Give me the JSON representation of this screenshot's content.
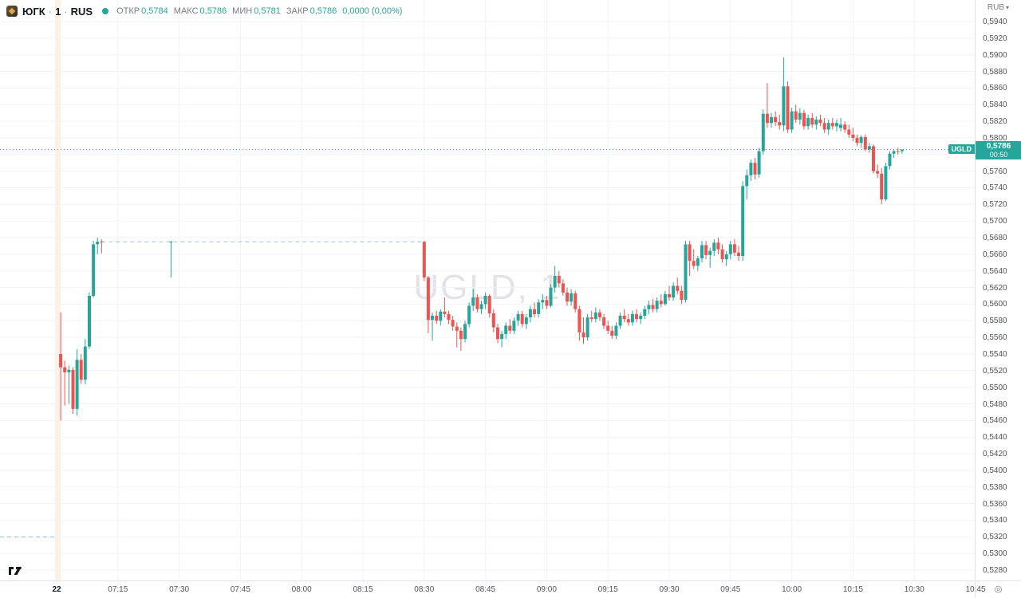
{
  "header": {
    "symbol": "ЮГК",
    "interval": "1",
    "exchange": "RUS",
    "separator": "·",
    "ohlc": {
      "open_label": "ОТКР",
      "open": "0,5784",
      "high_label": "МАКС",
      "high": "0,5786",
      "low_label": "МИН",
      "low": "0,5781",
      "close_label": "ЗАКР",
      "close": "0,5786",
      "change": "0,0000 (0,00%)"
    }
  },
  "watermark": "UGLD, 1",
  "price_axis": {
    "currency": "RUB",
    "caret": "▾",
    "badge": {
      "symbol": "UGLD",
      "price": "0,5786",
      "countdown": "00:50"
    }
  },
  "time_axis": {
    "ticks": [
      {
        "label": "22",
        "min": 0,
        "date": true
      },
      {
        "label": "07:15",
        "min": 15
      },
      {
        "label": "07:30",
        "min": 30
      },
      {
        "label": "07:45",
        "min": 45
      },
      {
        "label": "08:00",
        "min": 60
      },
      {
        "label": "08:15",
        "min": 75
      },
      {
        "label": "08:30",
        "min": 90
      },
      {
        "label": "08:45",
        "min": 105
      },
      {
        "label": "09:00",
        "min": 120
      },
      {
        "label": "09:15",
        "min": 135
      },
      {
        "label": "09:30",
        "min": 150
      },
      {
        "label": "09:45",
        "min": 165
      },
      {
        "label": "10:00",
        "min": 180
      },
      {
        "label": "10:15",
        "min": 195
      },
      {
        "label": "10:30",
        "min": 210
      },
      {
        "label": "10:45",
        "min": 225
      }
    ],
    "timezone_icon": "◎"
  },
  "colors": {
    "up": "#26a69a",
    "down": "#ef5350",
    "grid": "#f0f3fa",
    "session_band": "rgba(249,166,90,0.16)",
    "dashed_line": "#26a69a",
    "last_price_line": "#26a69a",
    "axis_text": "#50535e"
  },
  "chart_data": {
    "type": "candlestick",
    "symbol": "UGLD",
    "interval": "1m",
    "currency": "RUB",
    "ylim": [
      0.528,
      0.594
    ],
    "price_step": 0.002,
    "grid": true,
    "session_start_band_min": 0,
    "levels": {
      "prev_close": 0.532,
      "halt_level": 0.5675,
      "halt_from": "07:11",
      "halt_to": "08:30",
      "last_price": 0.5786
    },
    "candles": [
      [
        "07:01",
        0.554,
        0.559,
        0.546,
        0.5524
      ],
      [
        "07:02",
        0.5524,
        0.5532,
        0.5478,
        0.5518
      ],
      [
        "07:03",
        0.5518,
        0.5526,
        0.548,
        0.5521
      ],
      [
        "07:04",
        0.5521,
        0.5524,
        0.5468,
        0.5474
      ],
      [
        "07:05",
        0.5474,
        0.5546,
        0.5466,
        0.5533
      ],
      [
        "07:06",
        0.5533,
        0.554,
        0.5504,
        0.5509
      ],
      [
        "07:07",
        0.5509,
        0.5558,
        0.5504,
        0.5549
      ],
      [
        "07:08",
        0.5549,
        0.5614,
        0.5546,
        0.561
      ],
      [
        "07:09",
        0.561,
        0.5676,
        0.5608,
        0.5672
      ],
      [
        "07:10",
        0.5672,
        0.568,
        0.566,
        0.5675
      ],
      [
        "07:11",
        0.5675,
        0.5678,
        0.5661,
        0.5674
      ],
      [
        "07:28",
        0.5674,
        0.5676,
        0.5632,
        0.5675
      ],
      [
        "08:30",
        0.5675,
        0.5676,
        0.5628,
        0.5632
      ],
      [
        "08:31",
        0.5632,
        0.5634,
        0.5565,
        0.5581
      ],
      [
        "08:32",
        0.5581,
        0.559,
        0.5556,
        0.5586
      ],
      [
        "08:33",
        0.5586,
        0.5592,
        0.5576,
        0.558
      ],
      [
        "08:34",
        0.558,
        0.5594,
        0.5574,
        0.5591
      ],
      [
        "08:35",
        0.5591,
        0.5608,
        0.5584,
        0.5588
      ],
      [
        "08:36",
        0.5588,
        0.5592,
        0.5576,
        0.5581
      ],
      [
        "08:37",
        0.5581,
        0.5586,
        0.5568,
        0.5573
      ],
      [
        "08:38",
        0.5573,
        0.5578,
        0.5548,
        0.5568
      ],
      [
        "08:39",
        0.5568,
        0.5572,
        0.5544,
        0.5558
      ],
      [
        "08:40",
        0.5558,
        0.558,
        0.5554,
        0.5576
      ],
      [
        "08:41",
        0.5576,
        0.5602,
        0.5572,
        0.5598
      ],
      [
        "08:42",
        0.5598,
        0.5618,
        0.5592,
        0.5608
      ],
      [
        "08:43",
        0.5608,
        0.5612,
        0.559,
        0.5594
      ],
      [
        "08:44",
        0.5594,
        0.5604,
        0.5588,
        0.56
      ],
      [
        "08:45",
        0.56,
        0.5614,
        0.5594,
        0.561
      ],
      [
        "08:46",
        0.561,
        0.5612,
        0.5584,
        0.5589
      ],
      [
        "08:47",
        0.5589,
        0.5594,
        0.5566,
        0.5572
      ],
      [
        "08:48",
        0.5572,
        0.5576,
        0.5553,
        0.5558
      ],
      [
        "08:49",
        0.5558,
        0.5568,
        0.5548,
        0.5564
      ],
      [
        "08:50",
        0.5564,
        0.5578,
        0.5558,
        0.5574
      ],
      [
        "08:51",
        0.5574,
        0.5582,
        0.5564,
        0.5568
      ],
      [
        "08:52",
        0.5568,
        0.5584,
        0.5564,
        0.558
      ],
      [
        "08:53",
        0.558,
        0.5592,
        0.5574,
        0.5588
      ],
      [
        "08:54",
        0.5588,
        0.5592,
        0.5572,
        0.5576
      ],
      [
        "08:55",
        0.5576,
        0.5588,
        0.557,
        0.5584
      ],
      [
        "08:56",
        0.5584,
        0.5598,
        0.5578,
        0.5594
      ],
      [
        "08:57",
        0.5594,
        0.5602,
        0.5584,
        0.5588
      ],
      [
        "08:58",
        0.5588,
        0.5606,
        0.5584,
        0.5602
      ],
      [
        "08:59",
        0.5602,
        0.5612,
        0.5594,
        0.5605
      ],
      [
        "09:00",
        0.5605,
        0.561,
        0.5594,
        0.5598
      ],
      [
        "09:01",
        0.5598,
        0.5624,
        0.5596,
        0.562
      ],
      [
        "09:02",
        0.562,
        0.5646,
        0.5614,
        0.5634
      ],
      [
        "09:03",
        0.5634,
        0.564,
        0.562,
        0.5625
      ],
      [
        "09:04",
        0.5625,
        0.563,
        0.561,
        0.5614
      ],
      [
        "09:05",
        0.5614,
        0.562,
        0.5598,
        0.5603
      ],
      [
        "09:06",
        0.5603,
        0.5618,
        0.5598,
        0.5613
      ],
      [
        "09:07",
        0.5613,
        0.5616,
        0.559,
        0.5594
      ],
      [
        "09:08",
        0.5594,
        0.5598,
        0.5556,
        0.5566
      ],
      [
        "09:09",
        0.5566,
        0.5584,
        0.5552,
        0.556
      ],
      [
        "09:10",
        0.556,
        0.5588,
        0.5556,
        0.5584
      ],
      [
        "09:11",
        0.5584,
        0.5592,
        0.5578,
        0.5582
      ],
      [
        "09:12",
        0.5582,
        0.5596,
        0.5578,
        0.559
      ],
      [
        "09:13",
        0.559,
        0.5594,
        0.558,
        0.5584
      ],
      [
        "09:14",
        0.5584,
        0.5588,
        0.557,
        0.5574
      ],
      [
        "09:15",
        0.5574,
        0.558,
        0.5564,
        0.5568
      ],
      [
        "09:16",
        0.5568,
        0.5574,
        0.5558,
        0.5562
      ],
      [
        "09:17",
        0.5562,
        0.5578,
        0.5558,
        0.5574
      ],
      [
        "09:18",
        0.5574,
        0.559,
        0.557,
        0.5586
      ],
      [
        "09:19",
        0.5586,
        0.5594,
        0.5578,
        0.5582
      ],
      [
        "09:20",
        0.5582,
        0.5588,
        0.5574,
        0.5578
      ],
      [
        "09:21",
        0.5578,
        0.5592,
        0.5574,
        0.5588
      ],
      [
        "09:22",
        0.5588,
        0.5594,
        0.5578,
        0.5582
      ],
      [
        "09:23",
        0.5582,
        0.559,
        0.5576,
        0.5586
      ],
      [
        "09:24",
        0.5586,
        0.5598,
        0.5582,
        0.5594
      ],
      [
        "09:25",
        0.5594,
        0.5604,
        0.5588,
        0.5599
      ],
      [
        "09:26",
        0.5599,
        0.5606,
        0.559,
        0.5594
      ],
      [
        "09:27",
        0.5594,
        0.5608,
        0.559,
        0.5604
      ],
      [
        "09:28",
        0.5604,
        0.5612,
        0.5596,
        0.56
      ],
      [
        "09:29",
        0.56,
        0.5616,
        0.5598,
        0.5612
      ],
      [
        "09:30",
        0.5612,
        0.5622,
        0.5604,
        0.5608
      ],
      [
        "09:31",
        0.5608,
        0.5626,
        0.5604,
        0.5622
      ],
      [
        "09:32",
        0.5622,
        0.5632,
        0.5612,
        0.5616
      ],
      [
        "09:33",
        0.5616,
        0.5622,
        0.56,
        0.5605
      ],
      [
        "09:34",
        0.5605,
        0.5676,
        0.5602,
        0.5672
      ],
      [
        "09:35",
        0.5672,
        0.5676,
        0.5634,
        0.5652
      ],
      [
        "09:36",
        0.5652,
        0.5666,
        0.5642,
        0.5646
      ],
      [
        "09:37",
        0.5646,
        0.5658,
        0.564,
        0.5655
      ],
      [
        "09:38",
        0.5655,
        0.5676,
        0.565,
        0.5671
      ],
      [
        "09:39",
        0.5671,
        0.5676,
        0.5654,
        0.5659
      ],
      [
        "09:40",
        0.5659,
        0.5668,
        0.5644,
        0.5664
      ],
      [
        "09:41",
        0.5664,
        0.5678,
        0.5658,
        0.5674
      ],
      [
        "09:42",
        0.5674,
        0.568,
        0.566,
        0.5666
      ],
      [
        "09:43",
        0.5666,
        0.5672,
        0.565,
        0.5654
      ],
      [
        "09:44",
        0.5654,
        0.5664,
        0.5646,
        0.566
      ],
      [
        "09:45",
        0.566,
        0.5676,
        0.5654,
        0.5672
      ],
      [
        "09:46",
        0.5672,
        0.5678,
        0.5658,
        0.5662
      ],
      [
        "09:47",
        0.5662,
        0.567,
        0.5652,
        0.5658
      ],
      [
        "09:48",
        0.5658,
        0.5748,
        0.5652,
        0.5742
      ],
      [
        "09:49",
        0.5742,
        0.5762,
        0.5726,
        0.5755
      ],
      [
        "09:50",
        0.5755,
        0.5774,
        0.5748,
        0.577
      ],
      [
        "09:51",
        0.577,
        0.5776,
        0.575,
        0.5756
      ],
      [
        "09:52",
        0.5756,
        0.5788,
        0.5752,
        0.5784
      ],
      [
        "09:53",
        0.5784,
        0.5834,
        0.578,
        0.5829
      ],
      [
        "09:54",
        0.5829,
        0.5866,
        0.5812,
        0.5818
      ],
      [
        "09:55",
        0.5818,
        0.583,
        0.5812,
        0.5825
      ],
      [
        "09:56",
        0.5825,
        0.5832,
        0.5814,
        0.5819
      ],
      [
        "09:57",
        0.5819,
        0.5828,
        0.581,
        0.5815
      ],
      [
        "09:58",
        0.5815,
        0.5897,
        0.5808,
        0.5862
      ],
      [
        "09:59",
        0.5862,
        0.5868,
        0.5806,
        0.581
      ],
      [
        "10:00",
        0.581,
        0.5836,
        0.5806,
        0.5832
      ],
      [
        "10:01",
        0.5832,
        0.584,
        0.5818,
        0.5822
      ],
      [
        "10:02",
        0.5822,
        0.5836,
        0.5816,
        0.583
      ],
      [
        "10:03",
        0.583,
        0.5834,
        0.581,
        0.5814
      ],
      [
        "10:04",
        0.5814,
        0.5828,
        0.581,
        0.5824
      ],
      [
        "10:05",
        0.5824,
        0.583,
        0.5812,
        0.5816
      ],
      [
        "10:06",
        0.5816,
        0.5826,
        0.581,
        0.5822
      ],
      [
        "10:07",
        0.5822,
        0.5828,
        0.5814,
        0.5818
      ],
      [
        "10:08",
        0.5818,
        0.5824,
        0.5806,
        0.581
      ],
      [
        "10:09",
        0.581,
        0.5822,
        0.5804,
        0.5818
      ],
      [
        "10:10",
        0.5818,
        0.5824,
        0.581,
        0.5814
      ],
      [
        "10:11",
        0.5814,
        0.5822,
        0.5808,
        0.5818
      ],
      [
        "10:12",
        0.5812,
        0.5824,
        0.5808,
        0.5816
      ],
      [
        "10:13",
        0.5816,
        0.582,
        0.5806,
        0.581
      ],
      [
        "10:14",
        0.581,
        0.5816,
        0.58,
        0.5804
      ],
      [
        "10:15",
        0.5804,
        0.5812,
        0.5796,
        0.58
      ],
      [
        "10:16",
        0.58,
        0.5804,
        0.579,
        0.5794
      ],
      [
        "10:17",
        0.5794,
        0.5803,
        0.5788,
        0.5801
      ],
      [
        "10:18",
        0.5801,
        0.5804,
        0.5784,
        0.5786
      ],
      [
        "10:19",
        0.5786,
        0.5794,
        0.5782,
        0.579
      ],
      [
        "10:20",
        0.579,
        0.5792,
        0.5757,
        0.576
      ],
      [
        "10:21",
        0.576,
        0.5768,
        0.5752,
        0.5757
      ],
      [
        "10:22",
        0.5757,
        0.5764,
        0.572,
        0.5726
      ],
      [
        "10:23",
        0.5726,
        0.577,
        0.5724,
        0.5766
      ],
      [
        "10:24",
        0.5766,
        0.5784,
        0.5762,
        0.5781
      ],
      [
        "10:25",
        0.5781,
        0.5786,
        0.5776,
        0.5784
      ],
      [
        "10:26",
        0.5784,
        0.5788,
        0.578,
        0.5783
      ],
      [
        "10:27",
        0.5784,
        0.5786,
        0.5781,
        0.5786
      ]
    ]
  }
}
